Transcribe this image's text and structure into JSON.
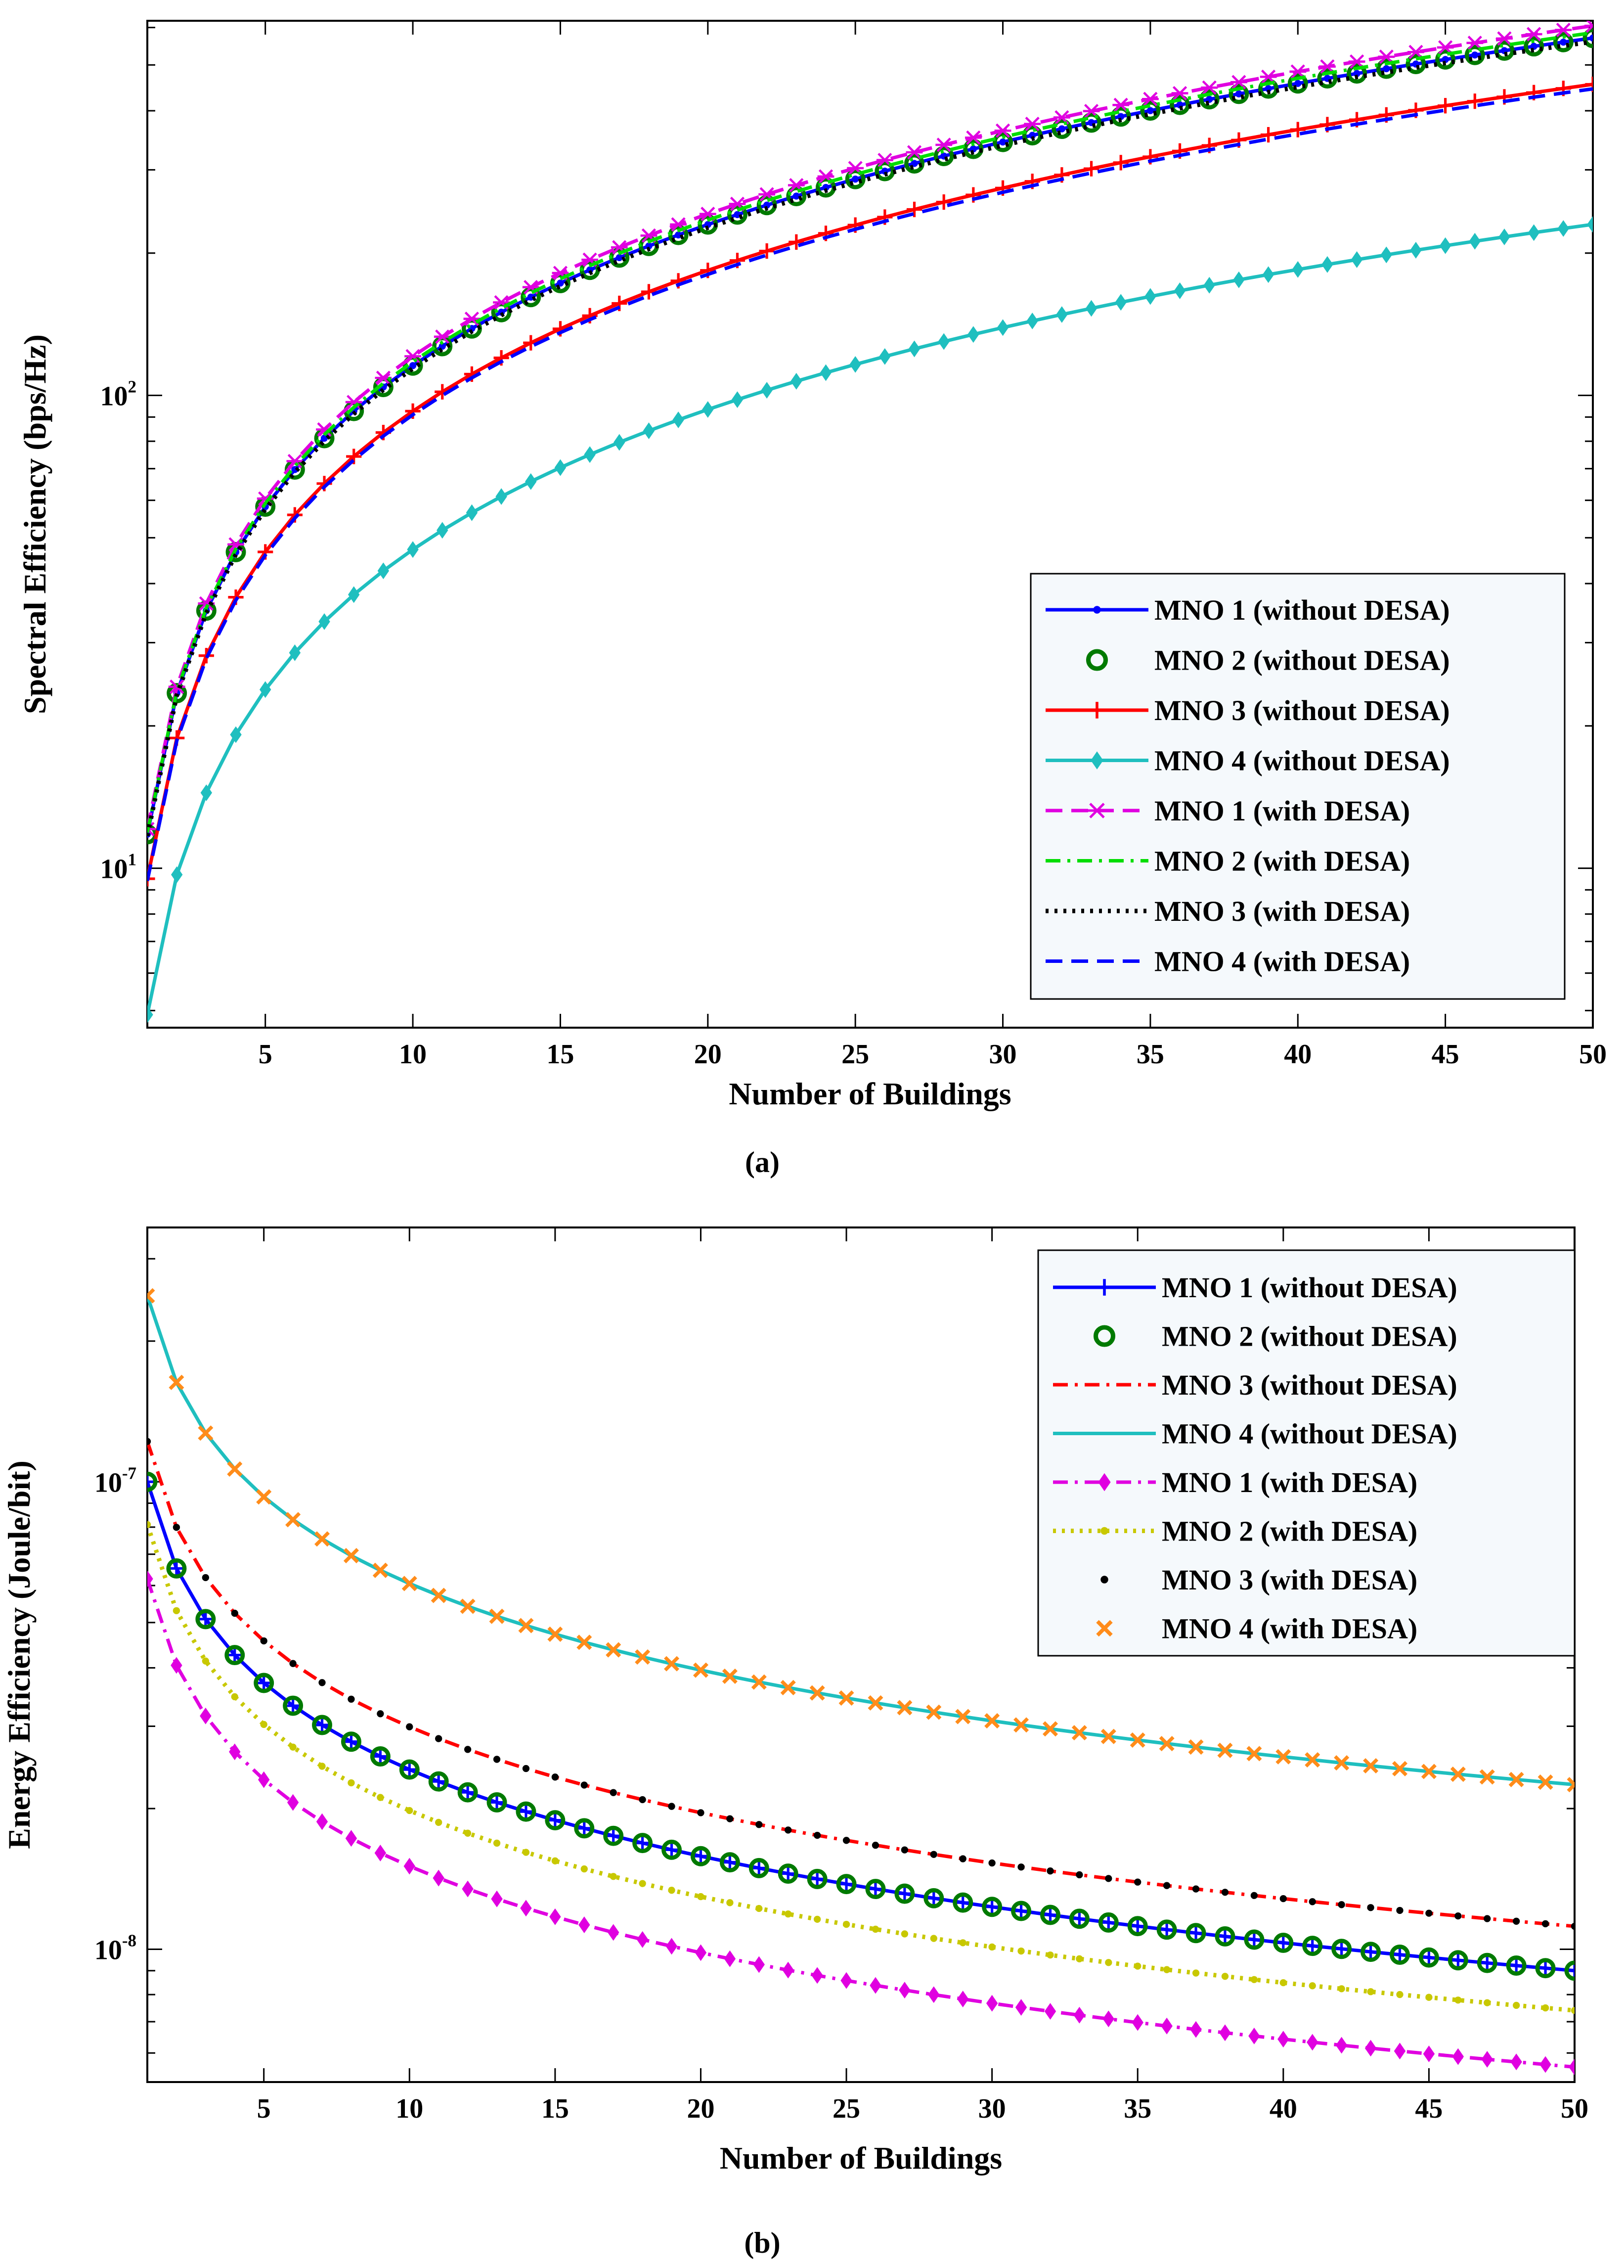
{
  "figure": {
    "caption_a": "(a)",
    "caption_b": "(b)"
  },
  "chart_data": [
    {
      "type": "line",
      "id": "a",
      "title": "",
      "xlabel": "Number of Buildings",
      "ylabel": "Spectral Efficiency (bps/Hz)",
      "xscale": "linear",
      "yscale": "log",
      "xlim": [
        1,
        50
      ],
      "ylim": [
        4.6,
        620
      ],
      "xticks": [
        5,
        10,
        15,
        20,
        25,
        30,
        35,
        40,
        45,
        50
      ],
      "xtick_labels": [
        "5",
        "10",
        "15",
        "20",
        "25",
        "30",
        "35",
        "40",
        "45",
        "50"
      ],
      "ytick_labels": [
        {
          "value": 10,
          "base": "10",
          "exp": "1"
        },
        {
          "value": 100,
          "base": "10",
          "exp": "2"
        }
      ],
      "grid": false,
      "legend_position": "bottom-right",
      "x_range": [
        1,
        50
      ],
      "series": [
        {
          "name": "MNO 1 (without DESA)",
          "color": "#0000ff",
          "line": "solid",
          "marker": "dot",
          "endpoints": [
            11.8,
            570
          ],
          "exponent": 0.99
        },
        {
          "name": "MNO 2 (without DESA)",
          "color": "#007a00",
          "line": "none",
          "marker": "circle",
          "endpoints": [
            11.8,
            570
          ],
          "exponent": 0.99
        },
        {
          "name": "MNO 3 (without DESA)",
          "color": "#ff0000",
          "line": "solid",
          "marker": "plus",
          "endpoints": [
            9.5,
            455
          ],
          "exponent": 0.99
        },
        {
          "name": "MNO 4 (without DESA)",
          "color": "#1fbfbf",
          "line": "solid",
          "marker": "diamond",
          "endpoints": [
            4.9,
            230
          ],
          "exponent": 0.985
        },
        {
          "name": "MNO 1 (with DESA)",
          "color": "#e000e0",
          "line": "dashed",
          "marker": "star",
          "endpoints": [
            12.1,
            605
          ],
          "exponent": 1.0
        },
        {
          "name": "MNO 2 (with DESA)",
          "color": "#00dd00",
          "line": "dashdot",
          "marker": "none",
          "endpoints": [
            11.9,
            585
          ],
          "exponent": 0.995
        },
        {
          "name": "MNO 3 (with DESA)",
          "color": "#000000",
          "line": "dotted",
          "marker": "none",
          "endpoints": [
            11.7,
            560
          ],
          "exponent": 0.99
        },
        {
          "name": "MNO 4 (with DESA)",
          "color": "#0000ff",
          "line": "dashed",
          "marker": "none",
          "endpoints": [
            9.4,
            445
          ],
          "exponent": 0.985
        }
      ]
    },
    {
      "type": "line",
      "id": "b",
      "title": "",
      "xlabel": "Number of Buildings",
      "ylabel": "Energy Efficiency (Joule/bit)",
      "xscale": "linear",
      "yscale": "log",
      "xlim": [
        1,
        50
      ],
      "ylim": [
        5.2e-09,
        3.5e-07
      ],
      "xticks": [
        5,
        10,
        15,
        20,
        25,
        30,
        35,
        40,
        45,
        50
      ],
      "xtick_labels": [
        "5",
        "10",
        "15",
        "20",
        "25",
        "30",
        "35",
        "40",
        "45",
        "50"
      ],
      "ytick_labels": [
        {
          "value": 1e-08,
          "base": "10",
          "exp": "-8"
        },
        {
          "value": 1e-07,
          "base": "10",
          "exp": "-7"
        }
      ],
      "grid": false,
      "legend_position": "top-right",
      "x_range": [
        1,
        50
      ],
      "series": [
        {
          "name": "MNO 1 (without DESA)",
          "color": "#0000ff",
          "line": "solid",
          "marker": "plus",
          "endpoints": [
            1e-07,
            9e-09
          ],
          "exponent": 0.62
        },
        {
          "name": "MNO 2 (without DESA)",
          "color": "#007a00",
          "line": "none",
          "marker": "circle",
          "endpoints": [
            1e-07,
            9e-09
          ],
          "exponent": 0.62
        },
        {
          "name": "MNO 3 (without DESA)",
          "color": "#ff0000",
          "line": "dashdot",
          "marker": "none",
          "endpoints": [
            1.22e-07,
            1.12e-08
          ],
          "exponent": 0.61
        },
        {
          "name": "MNO 4 (without DESA)",
          "color": "#1fbfbf",
          "line": "solid",
          "marker": "none",
          "endpoints": [
            2.5e-07,
            2.25e-08
          ],
          "exponent": 0.62
        },
        {
          "name": "MNO 1 (with DESA)",
          "color": "#e000e0",
          "line": "dashdot",
          "marker": "diamond",
          "endpoints": [
            6.2e-08,
            5.6e-09
          ],
          "exponent": 0.62
        },
        {
          "name": "MNO 2 (with DESA)",
          "color": "#c8c800",
          "line": "dotted",
          "marker": "dot",
          "endpoints": [
            8.1e-08,
            7.4e-09
          ],
          "exponent": 0.62
        },
        {
          "name": "MNO 3 (with DESA)",
          "color": "#000000",
          "line": "none",
          "marker": "dot",
          "endpoints": [
            1.22e-07,
            1.12e-08
          ],
          "exponent": 0.61
        },
        {
          "name": "MNO 4 (with DESA)",
          "color": "#ff8c1a",
          "line": "none",
          "marker": "x",
          "endpoints": [
            2.5e-07,
            2.25e-08
          ],
          "exponent": 0.62
        }
      ]
    }
  ]
}
